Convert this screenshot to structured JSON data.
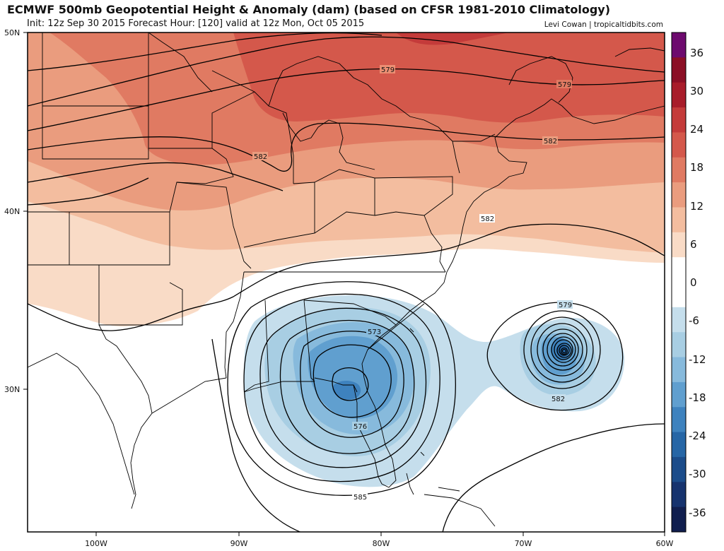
{
  "header": {
    "title": "ECMWF 500mb Geopotential Height & Anomaly (dam) (based on CFSR 1981-2010 Climatology)",
    "subtitle": "Init: 12z Sep 30 2015   Forecast Hour: [120]   valid at 12z Mon, Oct 05 2015",
    "credit": "Levi Cowan | tropicaltidbits.com"
  },
  "map": {
    "lat_labels": [
      "50N",
      "40N",
      "30N"
    ],
    "lon_labels": [
      "100W",
      "90W",
      "80W",
      "70W",
      "60W"
    ],
    "contour_labels": [
      "579",
      "579",
      "582",
      "582",
      "582",
      "573",
      "576",
      "585",
      "579",
      "582"
    ]
  },
  "colorbar": {
    "labels": [
      "36",
      "30",
      "24",
      "18",
      "12",
      "6",
      "0",
      "-6",
      "-12",
      "-18",
      "-24",
      "-30",
      "-36"
    ],
    "colors": [
      "#6d0a6e",
      "#8b0f25",
      "#a81c2a",
      "#c43b3a",
      "#d4584b",
      "#e07a62",
      "#ea9c7e",
      "#f3bd9f",
      "#f9dbc6",
      "#ffffff",
      "#ffffff",
      "#c5deec",
      "#a8cee3",
      "#87badc",
      "#609fcf",
      "#3e82be",
      "#2666a6",
      "#1b4c8a",
      "#16336e",
      "#101e4e"
    ]
  }
}
